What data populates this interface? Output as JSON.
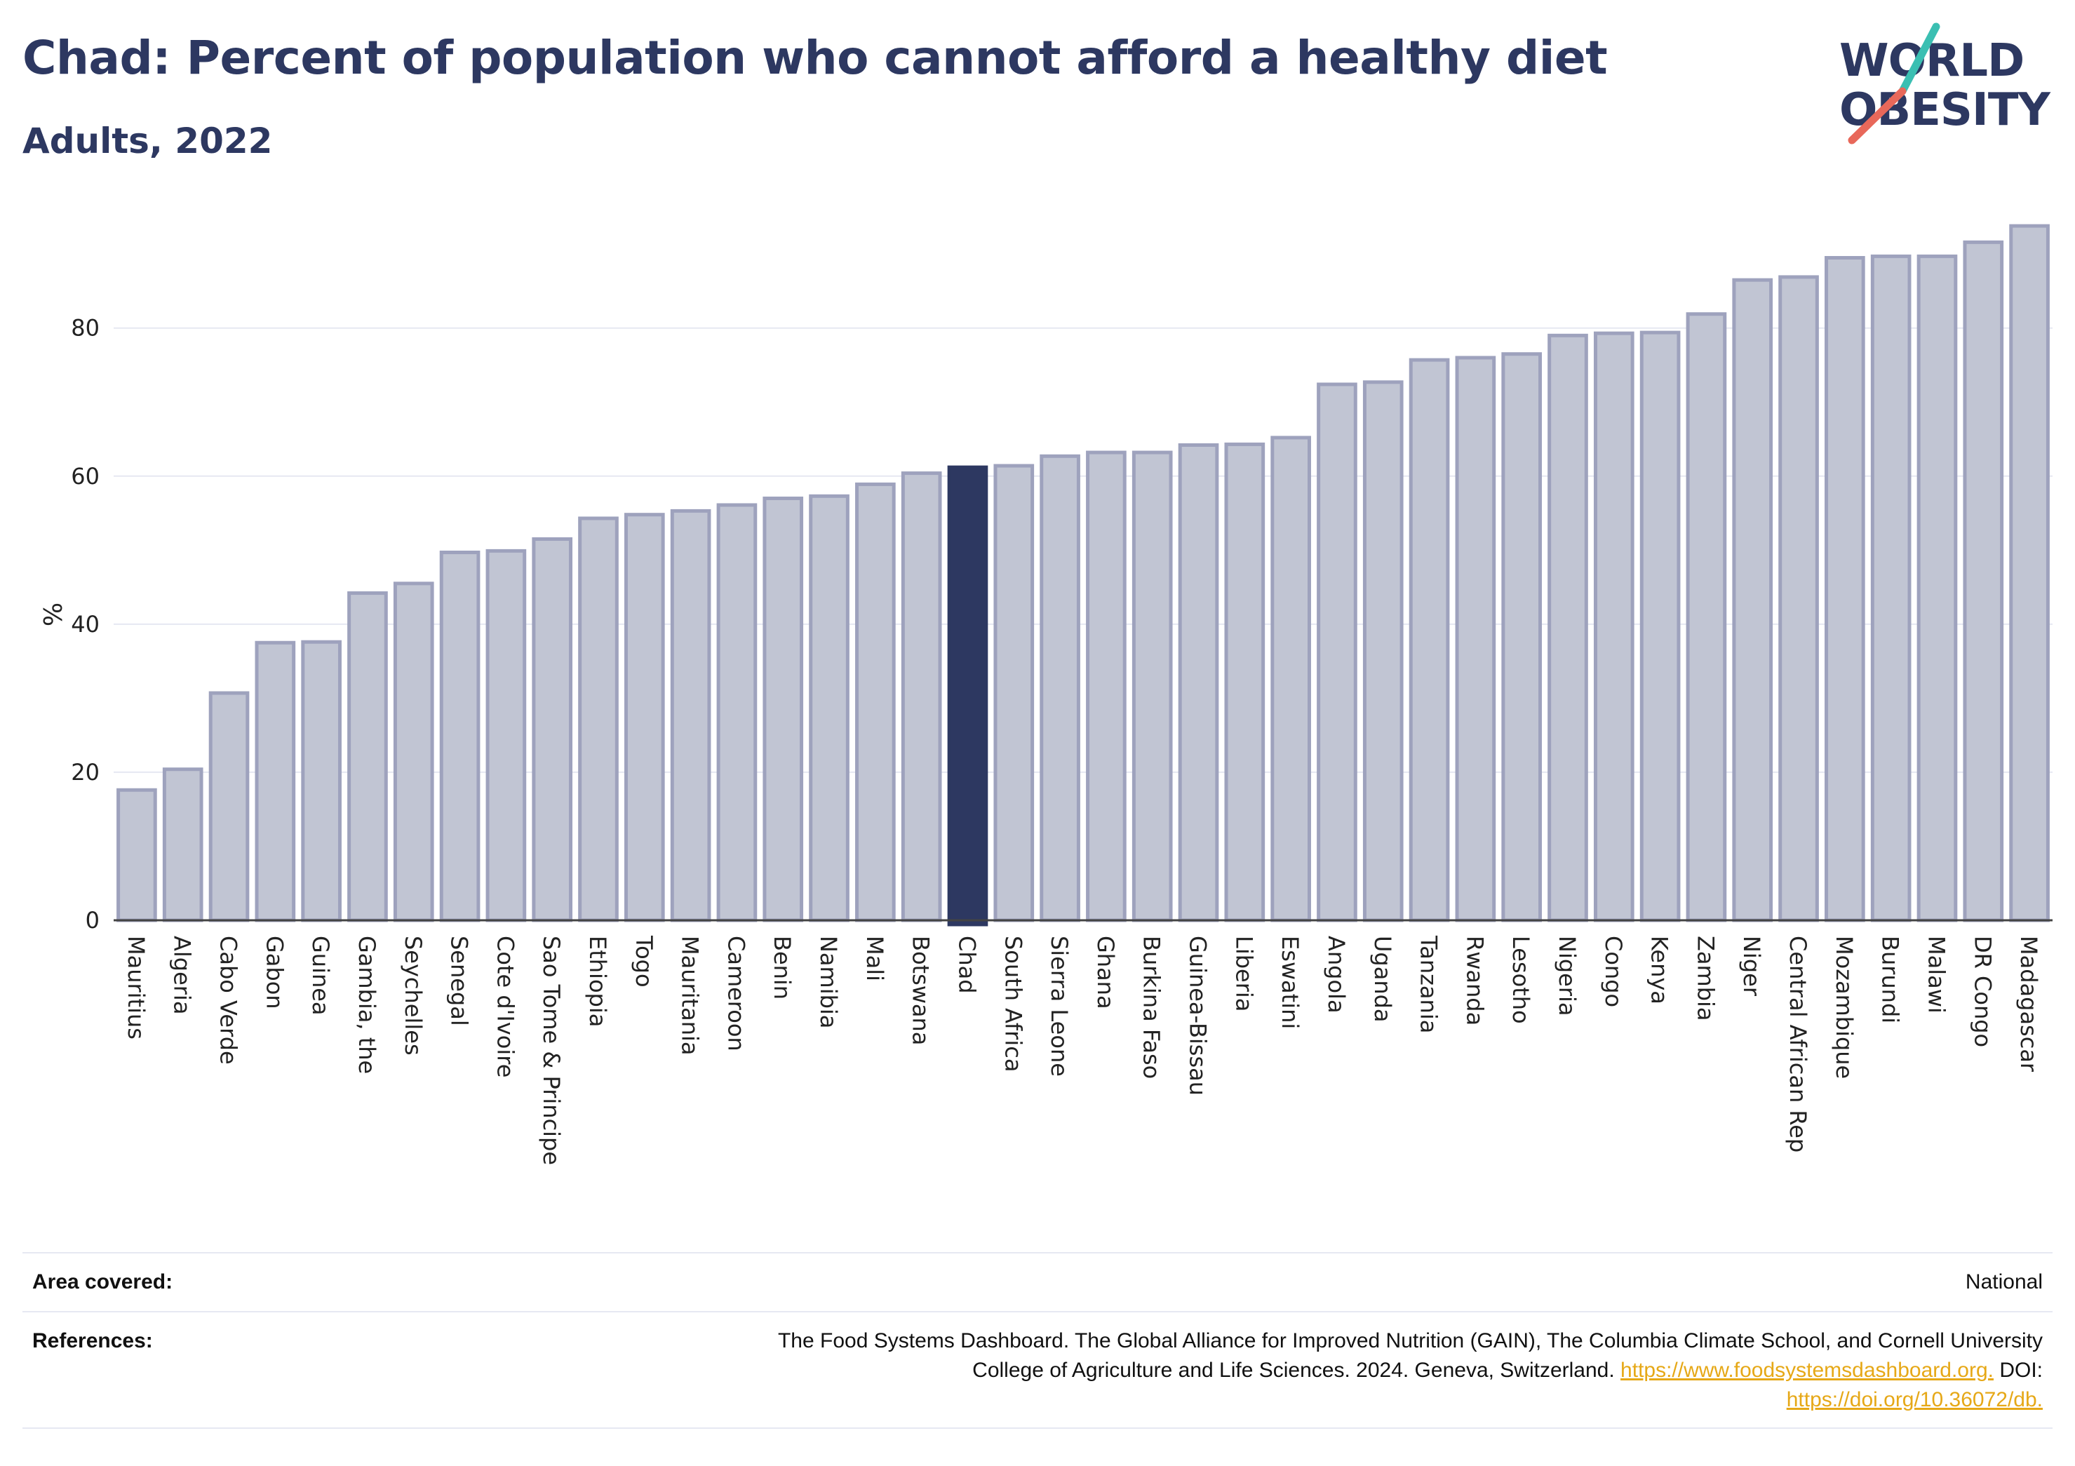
{
  "header": {
    "title": "Chad: Percent of population who cannot afford a healthy diet",
    "subtitle": "Adults, 2022"
  },
  "logo": {
    "line1": "WORLD",
    "line2": "OBESITY",
    "slash_colors": [
      "#3bbfb2",
      "#e8685a"
    ]
  },
  "colors": {
    "bar": "#c1c5d3",
    "bar_stroke": "#9ea2bd",
    "highlight": "#2d3861",
    "grid": "#e6e8f2",
    "text": "#2d3861",
    "link": "#e6a817"
  },
  "chart_data": {
    "type": "bar",
    "title": "Chad: Percent of population who cannot afford a healthy diet",
    "subtitle": "Adults, 2022",
    "xlabel": "",
    "ylabel": "%",
    "ylim": [
      0,
      94
    ],
    "yticks": [
      0,
      20,
      40,
      60,
      80
    ],
    "grid": true,
    "highlight": "Chad",
    "categories": [
      "Mauritius",
      "Algeria",
      "Cabo Verde",
      "Gabon",
      "Guinea",
      "Gambia, the",
      "Seychelles",
      "Senegal",
      "Cote d'Ivoire",
      "Sao Tome & Principe",
      "Ethiopia",
      "Togo",
      "Mauritania",
      "Cameroon",
      "Benin",
      "Namibia",
      "Mali",
      "Botswana",
      "Chad",
      "South Africa",
      "Sierra Leone",
      "Ghana",
      "Burkina Faso",
      "Guinea-Bissau",
      "Liberia",
      "Eswatini",
      "Angola",
      "Uganda",
      "Tanzania",
      "Rwanda",
      "Lesotho",
      "Nigeria",
      "Congo",
      "Kenya",
      "Zambia",
      "Niger",
      "Central African Rep",
      "Mozambique",
      "Burundi",
      "Malawi",
      "DR Congo",
      "Madagascar"
    ],
    "values": [
      17.6,
      20.4,
      30.7,
      37.5,
      37.6,
      44.2,
      45.5,
      49.7,
      49.9,
      51.5,
      54.3,
      54.8,
      55.3,
      56.1,
      57.0,
      57.3,
      58.9,
      60.4,
      61.2,
      61.4,
      62.7,
      63.2,
      63.2,
      64.2,
      64.3,
      65.2,
      72.4,
      72.7,
      75.7,
      76.0,
      76.5,
      79.0,
      79.3,
      79.4,
      81.9,
      86.5,
      86.9,
      89.5,
      89.7,
      89.7,
      91.6,
      93.8
    ]
  },
  "footer": {
    "area_label": "Area covered:",
    "area_value": "National",
    "references_label": "References:",
    "references_text": "The Food Systems Dashboard. The Global Alliance for Improved Nutrition (GAIN), The Columbia Climate School, and Cornell University",
    "references_text2": "College of Agriculture and Life Sciences. 2024. Geneva, Switzerland.",
    "references_link1": "https://www.foodsystemsdashboard.org.",
    "references_doi_label": "DOI:",
    "references_link2": "https://doi.org/10.36072/db."
  }
}
